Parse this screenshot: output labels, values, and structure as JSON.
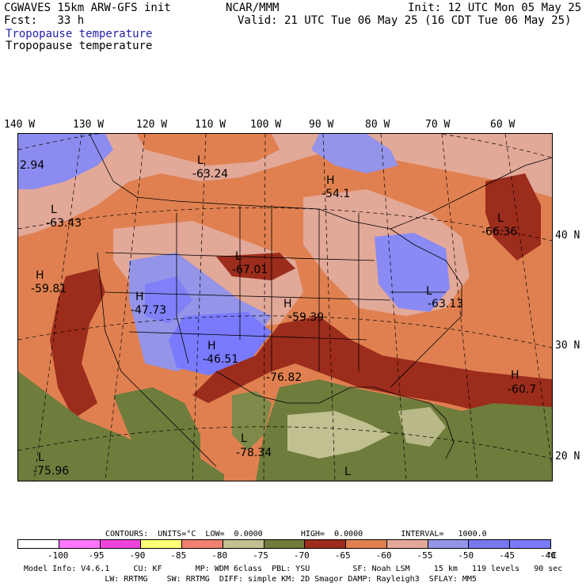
{
  "header": {
    "model": "CGWAVES 15km ARW-GFS init",
    "fcst": "Fcst:   33 h",
    "field_title": "Tropopause temperature",
    "field_title_2": "Tropopause temperature",
    "org": "NCAR/MMM",
    "init": "Init: 12 UTC Mon 05 May 25",
    "valid": "Valid: 21 UTC Tue 06 May 25 (16 CDT Tue 06 May 25)"
  },
  "longitude_labels": [
    "140 W",
    "130 W",
    "120 W",
    "110 W",
    "100 W",
    "90 W",
    "80 W",
    "70 W",
    "60 W"
  ],
  "latitude_labels": [
    "40 N",
    "30 N",
    "20 N"
  ],
  "map_labels": [
    {
      "letter": "L",
      "value": "-63.24"
    },
    {
      "letter": "H",
      "value": "-54.1"
    },
    {
      "letter": "L",
      "value": "-63.43"
    },
    {
      "letter": "L",
      "value": "-66.36"
    },
    {
      "letter": "H",
      "value": "-59.81"
    },
    {
      "letter": "L",
      "value": "-67.01"
    },
    {
      "letter": "H",
      "value": "-47.73"
    },
    {
      "letter": "H",
      "value": "-59.39"
    },
    {
      "letter": "L",
      "value": "-63.13"
    },
    {
      "letter": "H",
      "value": "-46.51"
    },
    {
      "letter": "",
      "value": "-76.82"
    },
    {
      "letter": "H",
      "value": "-60.7"
    },
    {
      "letter": "L",
      "value": "-78.34"
    },
    {
      "letter": "L",
      "value": "-75.96"
    },
    {
      "letter": "",
      "value": "2.94"
    },
    {
      "letter": "L",
      "value": ""
    }
  ],
  "contours_info": "CONTOURS:  UNITS=°C  LOW=  0.0000        HIGH=  0.0000        INTERVAL=   1000.0",
  "legend": {
    "colors": [
      "#ffffff",
      "#ff77ff",
      "#ee44dd",
      "#ffff77",
      "#f08070",
      "#c0c090",
      "#6e7c3c",
      "#9c2c1c",
      "#e08050",
      "#e2a898",
      "#9494e8",
      "#7777f0",
      "#7a7aff"
    ],
    "ticks": [
      "-100",
      "-95",
      "-90",
      "-85",
      "-80",
      "-75",
      "-70",
      "-65",
      "-60",
      "-55",
      "-50",
      "-45",
      "-40"
    ],
    "unit": "°C"
  },
  "footer": {
    "line1": "Model Info: V4.6.1     CU: KF       MP: WDM 6class  PBL: YSU         SF: Noah LSM     15 km   119 levels   90 sec",
    "line2": "                 LW: RRTMG    SW: RRTMG  DIFF: simple KM: 2D Smagor DAMP: Rayleigh3  SFLAY: MM5"
  }
}
